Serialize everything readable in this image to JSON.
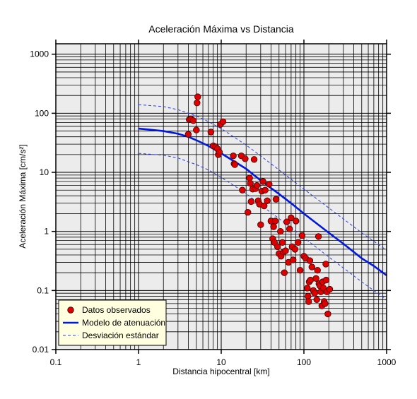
{
  "chart_data": {
    "type": "scatter",
    "title": "Aceleración Máxima vs Distancia",
    "xlabel": "Distancia hipocentral [km]",
    "ylabel": "Aceleración Máxima [cm/s²]",
    "x_scale": "log",
    "y_scale": "log",
    "xlim": [
      0.1,
      1000
    ],
    "ylim": [
      0.01,
      1500
    ],
    "x_ticks": [
      "0.1",
      "1",
      "10",
      "100",
      "1000"
    ],
    "y_ticks": [
      "0.01",
      "0.1",
      "1",
      "10",
      "100",
      "1000"
    ],
    "grid": true,
    "legend": {
      "placement": "bottom-left",
      "entries": [
        "Datos observados",
        "Modelo de atenuación",
        "Desviación estándar"
      ]
    },
    "colors": {
      "points": "#e00000",
      "point_edge": "#3a0000",
      "model": "#0018e0",
      "deviation": "#2a3fe8",
      "plot_bg": "#ececec",
      "legend_bg": "#ffffe0"
    },
    "series": [
      {
        "name": "Datos observados",
        "kind": "scatter",
        "points": [
          [
            4.0,
            44
          ],
          [
            4.1,
            78
          ],
          [
            4.3,
            80
          ],
          [
            4.6,
            75
          ],
          [
            5.0,
            52
          ],
          [
            5.1,
            150
          ],
          [
            5.2,
            190
          ],
          [
            7.5,
            48
          ],
          [
            8.0,
            28
          ],
          [
            8.6,
            27
          ],
          [
            9.0,
            25
          ],
          [
            9.2,
            20
          ],
          [
            9.5,
            22
          ],
          [
            9.8,
            65
          ],
          [
            10.5,
            72
          ],
          [
            14,
            19
          ],
          [
            14.3,
            14
          ],
          [
            14.6,
            13.5
          ],
          [
            17.5,
            19
          ],
          [
            18,
            5
          ],
          [
            19.5,
            17
          ],
          [
            21,
            2.1
          ],
          [
            22,
            8
          ],
          [
            22.5,
            6.5
          ],
          [
            23,
            3.2
          ],
          [
            24,
            5.2
          ],
          [
            25,
            16.5
          ],
          [
            26,
            5.3
          ],
          [
            27,
            6
          ],
          [
            28,
            3.3
          ],
          [
            29,
            2.9
          ],
          [
            30,
            1.3
          ],
          [
            31,
            4.8
          ],
          [
            32,
            7
          ],
          [
            33,
            2.7
          ],
          [
            34,
            5
          ],
          [
            36,
            3.3
          ],
          [
            38,
            6.3
          ],
          [
            40,
            1.5
          ],
          [
            42,
            0.75
          ],
          [
            43,
            1.2
          ],
          [
            44,
            0.65
          ],
          [
            45,
            1.5
          ],
          [
            46,
            3.5
          ],
          [
            48,
            0.55
          ],
          [
            50,
            0.42
          ],
          [
            52,
            1
          ],
          [
            53,
            0.38
          ],
          [
            55,
            0.65
          ],
          [
            57,
            0.45
          ],
          [
            58,
            0.2
          ],
          [
            60,
            0.47
          ],
          [
            62,
            1.45
          ],
          [
            65,
            0.3
          ],
          [
            67,
            1.1
          ],
          [
            70,
            1.7
          ],
          [
            72,
            0.55
          ],
          [
            74,
            0.33
          ],
          [
            78,
            0.5
          ],
          [
            80,
            1.5
          ],
          [
            85,
            0.65
          ],
          [
            90,
            0.22
          ],
          [
            95,
            0.85
          ],
          [
            100,
            0.38
          ],
          [
            105,
            0.35
          ],
          [
            110,
            0.11
          ],
          [
            112,
            0.08
          ],
          [
            114,
            0.065
          ],
          [
            116,
            0.14
          ],
          [
            118,
            0.32
          ],
          [
            120,
            0.15
          ],
          [
            125,
            0.25
          ],
          [
            130,
            0.1
          ],
          [
            135,
            0.09
          ],
          [
            140,
            0.16
          ],
          [
            143,
            0.07
          ],
          [
            146,
            0.22
          ],
          [
            150,
            0.82
          ],
          [
            152,
            0.13
          ],
          [
            156,
            0.12
          ],
          [
            160,
            0.095
          ],
          [
            165,
            0.055
          ],
          [
            168,
            0.14
          ],
          [
            172,
            0.11
          ],
          [
            176,
            0.065
          ],
          [
            180,
            0.06
          ],
          [
            184,
            0.28
          ],
          [
            186,
            0.15
          ],
          [
            190,
            0.095
          ],
          [
            195,
            0.04
          ],
          [
            205,
            0.105
          ]
        ]
      },
      {
        "name": "Modelo de atenuación",
        "kind": "line",
        "points": [
          [
            1,
            55
          ],
          [
            2,
            50
          ],
          [
            3,
            45
          ],
          [
            4,
            40
          ],
          [
            5,
            35
          ],
          [
            7,
            28
          ],
          [
            10,
            21
          ],
          [
            20,
            11.5
          ],
          [
            30,
            7.3
          ],
          [
            50,
            4.3
          ],
          [
            70,
            3.0
          ],
          [
            100,
            2.0
          ],
          [
            200,
            0.95
          ],
          [
            300,
            0.62
          ],
          [
            500,
            0.35
          ],
          [
            700,
            0.26
          ],
          [
            1000,
            0.18
          ]
        ]
      },
      {
        "name": "Desviación estándar",
        "kind": "line",
        "dashed": true,
        "points": [
          [
            1,
            140
          ],
          [
            2,
            130
          ],
          [
            3,
            115
          ],
          [
            5,
            90
          ],
          [
            7,
            72
          ],
          [
            10,
            55
          ],
          [
            20,
            29
          ],
          [
            30,
            19
          ],
          [
            50,
            11
          ],
          [
            100,
            5.2
          ],
          [
            200,
            2.5
          ],
          [
            500,
            0.95
          ],
          [
            1000,
            0.48
          ]
        ]
      },
      {
        "name": "Desviación estándar",
        "kind": "line",
        "dashed": true,
        "points": [
          [
            1,
            21
          ],
          [
            2,
            19.5
          ],
          [
            3,
            17.5
          ],
          [
            5,
            13.5
          ],
          [
            7,
            11
          ],
          [
            10,
            8.2
          ],
          [
            20,
            4.4
          ],
          [
            30,
            2.8
          ],
          [
            50,
            1.65
          ],
          [
            100,
            0.78
          ],
          [
            200,
            0.37
          ],
          [
            500,
            0.14
          ],
          [
            1000,
            0.07
          ]
        ]
      }
    ]
  }
}
